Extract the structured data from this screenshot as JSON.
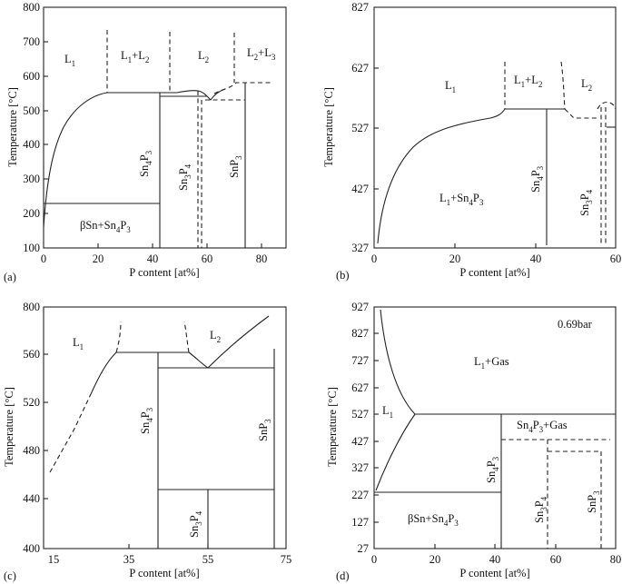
{
  "chart_data": [
    {
      "type": "diagram",
      "caption": "(a)",
      "xlabel": "P content [at%]",
      "ylabel": "Temperature [°C]",
      "xlim": [
        0,
        90
      ],
      "ylim": [
        100,
        800
      ],
      "xticks": [
        "0",
        "20",
        "40",
        "60",
        "80"
      ],
      "yticks": [
        "100",
        "200",
        "300",
        "400",
        "500",
        "600",
        "700",
        "800"
      ],
      "regions": [
        "L1",
        "L1+L2",
        "L2",
        "L2+L3",
        "βSn+Sn4P3",
        "Sn4P3",
        "Sn3P4",
        "SnP3"
      ]
    },
    {
      "type": "diagram",
      "caption": "(b)",
      "xlabel": "P content [at%]",
      "ylabel": "Temperature [°C]",
      "xlim": [
        0,
        60
      ],
      "ylim": [
        327,
        827
      ],
      "xticks": [
        "0",
        "20",
        "40",
        "60"
      ],
      "yticks": [
        "327",
        "427",
        "527",
        "627",
        "827"
      ],
      "regions": [
        "L1",
        "L1+L2",
        "L2",
        "L1+Sn4P3",
        "Sn4P3",
        "Sn3P4"
      ]
    },
    {
      "type": "diagram",
      "caption": "(c)",
      "xlabel": "P content [at%]",
      "ylabel": "Temperature [°C]",
      "xlim": [
        12,
        75
      ],
      "ylim": [
        400,
        800
      ],
      "xticks": [
        "15",
        "35",
        "55",
        "75"
      ],
      "yticks": [
        "400",
        "440",
        "480",
        "520",
        "560",
        "800"
      ],
      "regions": [
        "L1",
        "L2",
        "Sn4P3",
        "SnP3",
        "Sn3P4"
      ]
    },
    {
      "type": "diagram",
      "caption": "(d)",
      "xlabel": "P content [at%]",
      "ylabel": "Temperature [°C]",
      "xlim": [
        0,
        80
      ],
      "ylim": [
        27,
        927
      ],
      "xticks": [
        "0",
        "20",
        "40",
        "60",
        "80"
      ],
      "yticks": [
        "27",
        "127",
        "227",
        "327",
        "427",
        "527",
        "627",
        "727",
        "827",
        "927"
      ],
      "pressure": "0.69bar",
      "regions": [
        "L1+Gas",
        "L1",
        "Sn4P3+Gas",
        "Sn4P3",
        "βSn+Sn4P3",
        "Sn3P4",
        "SnP3"
      ]
    }
  ]
}
